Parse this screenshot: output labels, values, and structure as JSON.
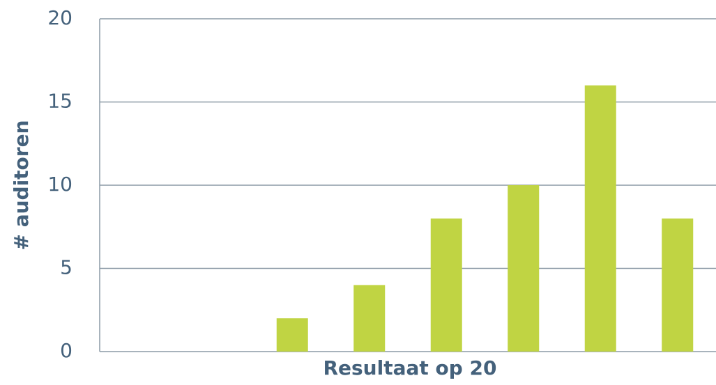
{
  "chart_data": {
    "type": "bar",
    "y_label": "# auditoren",
    "x_label": "Resultaat op 20",
    "categories": [
      null,
      null,
      null,
      null,
      null,
      null,
      null,
      null
    ],
    "values": [
      0,
      0,
      2,
      4,
      8,
      10,
      16,
      8
    ],
    "color": "#c0d443",
    "ylim": [
      0,
      20
    ],
    "yticks": [
      0,
      5,
      10,
      15,
      20
    ],
    "grid": true
  }
}
